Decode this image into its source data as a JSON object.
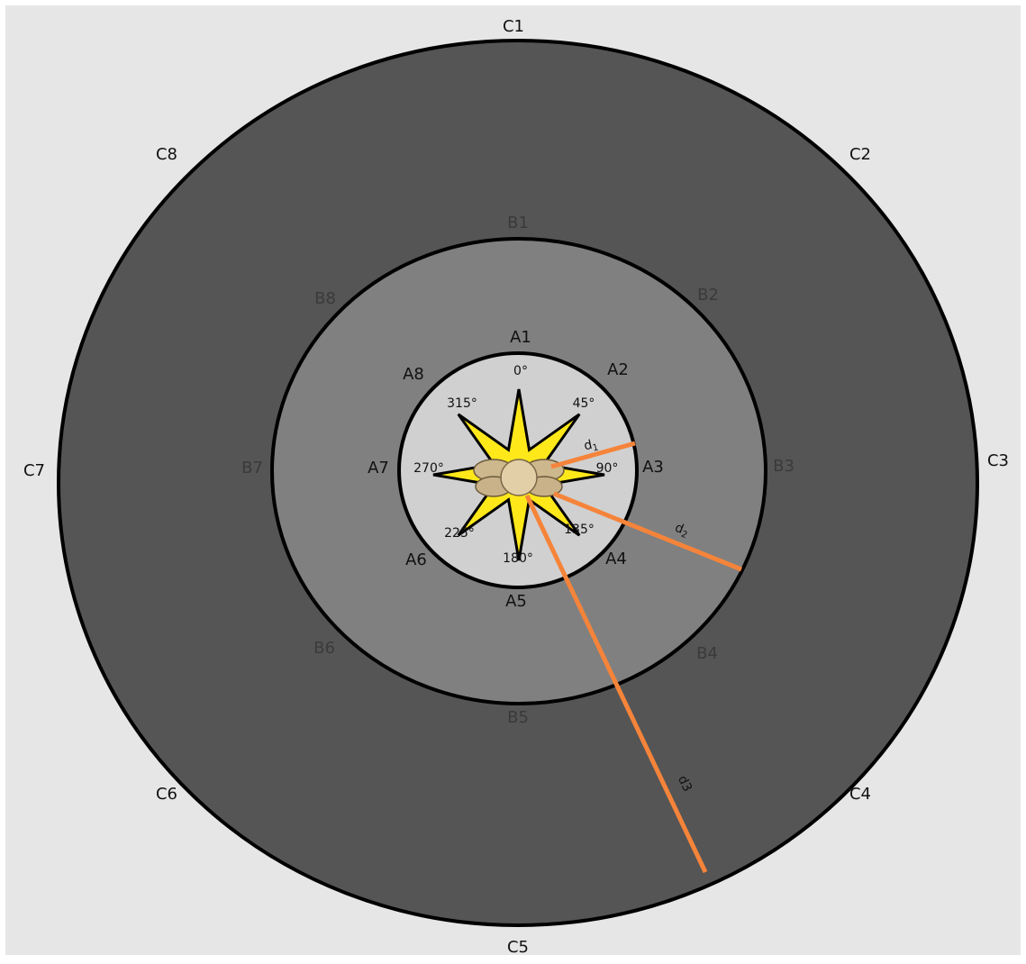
{
  "rings": {
    "C": [
      "C1",
      "C2",
      "C3",
      "C4",
      "C5",
      "C6",
      "C7",
      "C8"
    ],
    "B": [
      "B1",
      "B2",
      "B3",
      "B4",
      "B5",
      "B6",
      "B7",
      "B8"
    ],
    "A": [
      "A1",
      "A2",
      "A3",
      "A4",
      "A5",
      "A6",
      "A7",
      "A8"
    ]
  },
  "angles": [
    "0°",
    "45°",
    "90°",
    "135°",
    "180°",
    "225°",
    "270°",
    "315°"
  ],
  "distances": {
    "d1": {
      "text": "d",
      "sub": "1"
    },
    "d2": {
      "text": "d",
      "sub": "2"
    },
    "d3": "d3"
  }
}
